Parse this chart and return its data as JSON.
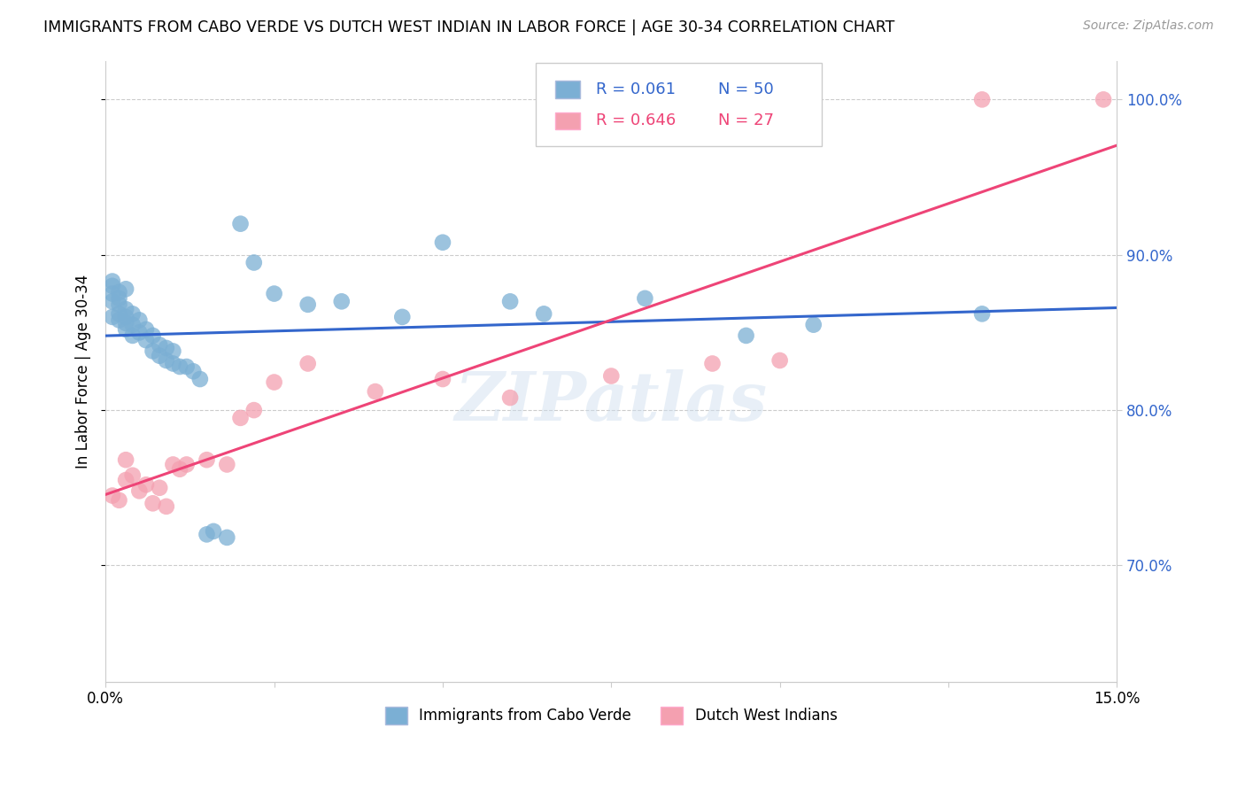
{
  "title": "IMMIGRANTS FROM CABO VERDE VS DUTCH WEST INDIAN IN LABOR FORCE | AGE 30-34 CORRELATION CHART",
  "source": "Source: ZipAtlas.com",
  "ylabel": "In Labor Force | Age 30-34",
  "xmin": 0.0,
  "xmax": 0.15,
  "ymin": 0.625,
  "ymax": 1.025,
  "yticks": [
    0.7,
    0.8,
    0.9,
    1.0
  ],
  "ytick_labels": [
    "70.0%",
    "80.0%",
    "90.0%",
    "100.0%"
  ],
  "xticks": [
    0.0,
    0.025,
    0.05,
    0.075,
    0.1,
    0.125,
    0.15
  ],
  "xtick_labels": [
    "0.0%",
    "",
    "",
    "",
    "",
    "",
    "15.0%"
  ],
  "color_blue": "#7BAFD4",
  "color_pink": "#F4A0B0",
  "line_color_blue": "#3366CC",
  "line_color_pink": "#EE4477",
  "watermark": "ZIPatlas",
  "cabo_verde_x": [
    0.001,
    0.001,
    0.001,
    0.001,
    0.001,
    0.002,
    0.002,
    0.002,
    0.002,
    0.002,
    0.003,
    0.003,
    0.003,
    0.003,
    0.003,
    0.004,
    0.004,
    0.004,
    0.005,
    0.005,
    0.006,
    0.006,
    0.007,
    0.007,
    0.008,
    0.008,
    0.009,
    0.009,
    0.01,
    0.01,
    0.011,
    0.012,
    0.013,
    0.014,
    0.015,
    0.016,
    0.018,
    0.02,
    0.022,
    0.025,
    0.03,
    0.035,
    0.044,
    0.05,
    0.06,
    0.065,
    0.08,
    0.095,
    0.105,
    0.13
  ],
  "cabo_verde_y": [
    0.87,
    0.875,
    0.88,
    0.883,
    0.86,
    0.858,
    0.862,
    0.868,
    0.872,
    0.876,
    0.852,
    0.856,
    0.86,
    0.865,
    0.878,
    0.848,
    0.855,
    0.862,
    0.85,
    0.858,
    0.845,
    0.852,
    0.838,
    0.848,
    0.835,
    0.842,
    0.832,
    0.84,
    0.83,
    0.838,
    0.828,
    0.828,
    0.825,
    0.82,
    0.72,
    0.722,
    0.718,
    0.92,
    0.895,
    0.875,
    0.868,
    0.87,
    0.86,
    0.908,
    0.87,
    0.862,
    0.872,
    0.848,
    0.855,
    0.862
  ],
  "dutch_x": [
    0.001,
    0.002,
    0.003,
    0.003,
    0.004,
    0.005,
    0.006,
    0.007,
    0.008,
    0.009,
    0.01,
    0.011,
    0.012,
    0.015,
    0.018,
    0.02,
    0.022,
    0.025,
    0.03,
    0.04,
    0.05,
    0.06,
    0.075,
    0.09,
    0.1,
    0.13,
    0.148
  ],
  "dutch_y": [
    0.745,
    0.742,
    0.755,
    0.768,
    0.758,
    0.748,
    0.752,
    0.74,
    0.75,
    0.738,
    0.765,
    0.762,
    0.765,
    0.768,
    0.765,
    0.795,
    0.8,
    0.818,
    0.83,
    0.812,
    0.82,
    0.808,
    0.822,
    0.83,
    0.832,
    1.0,
    1.0
  ]
}
